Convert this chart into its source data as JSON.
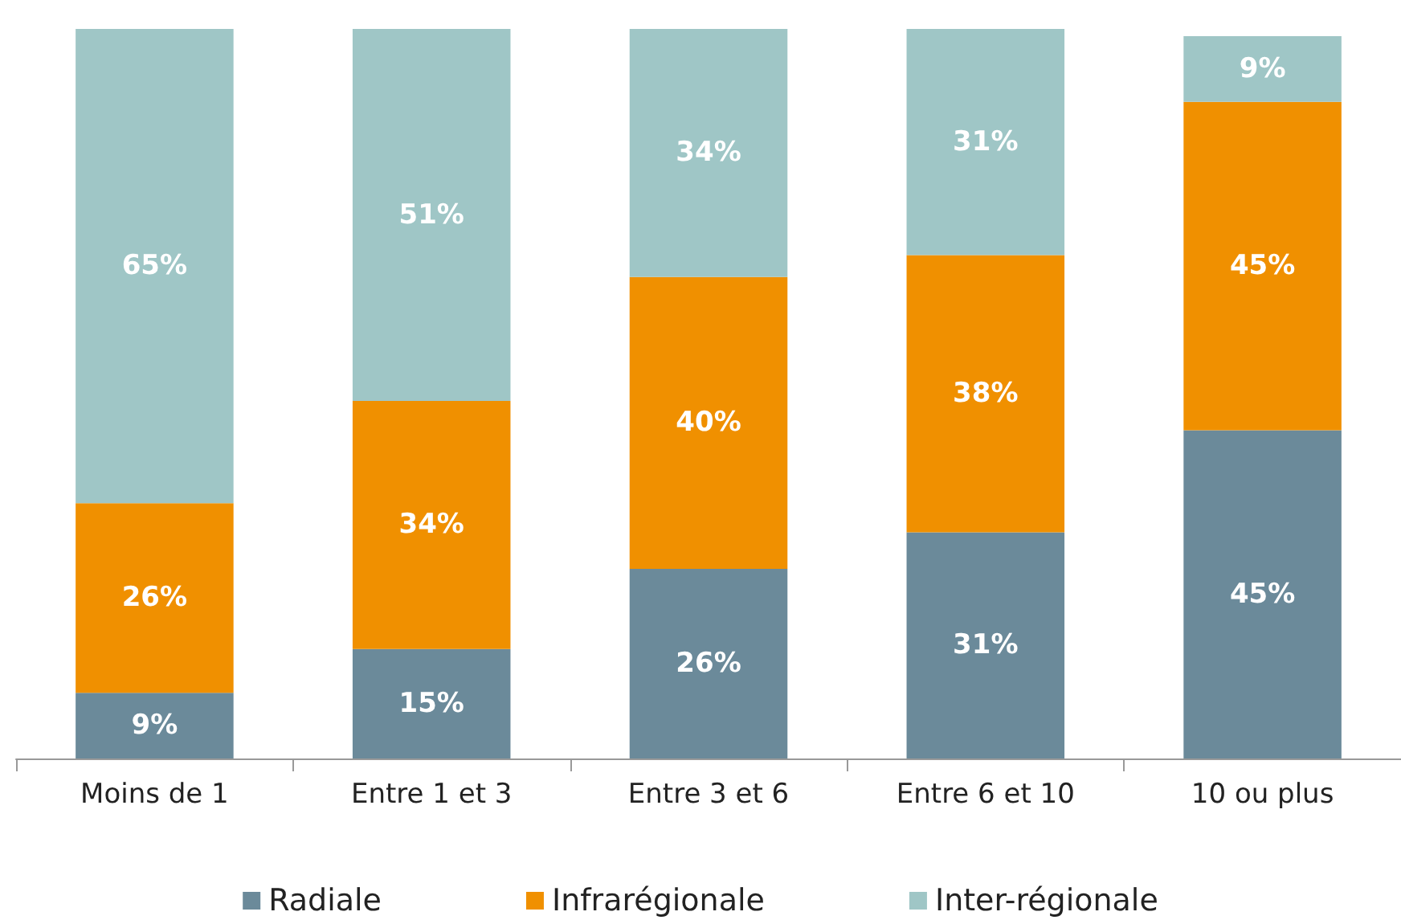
{
  "chart_data": {
    "type": "bar",
    "stacked": true,
    "categories": [
      "Moins de 1",
      "Entre 1 et 3",
      "Entre 3 et 6",
      "Entre 6 et 10",
      "10 ou plus"
    ],
    "series": [
      {
        "name": "Radiale",
        "color": "#6b8a9a",
        "values": [
          9,
          15,
          26,
          31,
          45
        ],
        "value_labels": [
          "9%",
          "15%",
          "26%",
          "31%",
          "45%"
        ]
      },
      {
        "name": "Infrarégionale",
        "color": "#f09000",
        "values": [
          26,
          34,
          40,
          38,
          45
        ],
        "value_labels": [
          "26%",
          "34%",
          "40%",
          "38%",
          "45%"
        ]
      },
      {
        "name": "Inter-régionale",
        "color": "#9fc6c6",
        "values": [
          65,
          51,
          34,
          31,
          9
        ],
        "value_labels": [
          "65%",
          "51%",
          "34%",
          "31%",
          "9%"
        ]
      }
    ],
    "ylim": [
      0,
      100
    ],
    "tick_labels": "x",
    "grid": false,
    "legend": "bottom"
  }
}
